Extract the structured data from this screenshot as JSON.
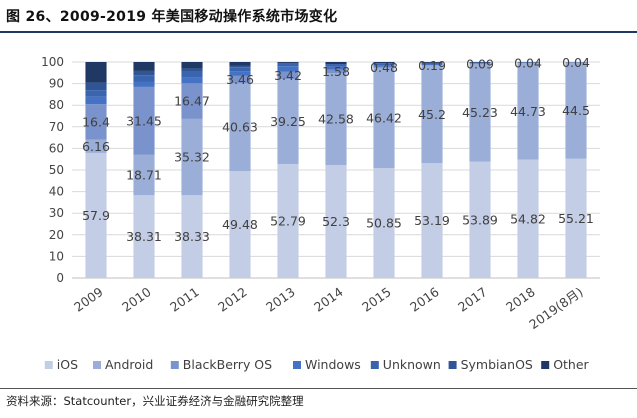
{
  "title": "图 26、2009-2019 年美国移动操作系统市场变化",
  "source": "资料来源：Statcounter，兴业证券经济与金融研究院整理",
  "chart_data": {
    "type": "bar",
    "stacked": true,
    "title": "",
    "xlabel": "",
    "ylabel": "",
    "ylim": [
      0,
      100
    ],
    "yticks": [
      "0",
      "10",
      "20",
      "30",
      "40",
      "50",
      "60",
      "70",
      "80",
      "90",
      "100"
    ],
    "grid": true,
    "legend_position": "bottom",
    "categories": [
      "2009",
      "2010",
      "2011",
      "2012",
      "2013",
      "2014",
      "2015",
      "2016",
      "2017",
      "2018",
      "2019(8月)"
    ],
    "series": [
      {
        "name": "iOS",
        "color": "#c3cde6",
        "values": [
          57.9,
          38.31,
          38.33,
          49.48,
          52.79,
          52.3,
          50.85,
          53.19,
          53.89,
          54.82,
          55.21
        ],
        "labels": [
          "57.9",
          "38.31",
          "38.33",
          "49.48",
          "52.79",
          "52.3",
          "50.85",
          "53.19",
          "53.89",
          "54.82",
          "55.21"
        ]
      },
      {
        "name": "Android",
        "color": "#9aaed8",
        "values": [
          6.16,
          18.71,
          35.32,
          40.63,
          39.25,
          42.58,
          46.42,
          45.2,
          45.23,
          44.73,
          44.5
        ],
        "labels": [
          "6.16",
          "18.71",
          "35.32",
          "40.63",
          "39.25",
          "42.58",
          "46.42",
          "45.2",
          "45.23",
          "44.73",
          "44.5"
        ]
      },
      {
        "name": "BlackBerry OS",
        "color": "#7b93cc",
        "values": [
          16.4,
          31.45,
          16.47,
          3.46,
          3.42,
          1.58,
          0.48,
          0.19,
          0.09,
          0.04,
          0.04
        ],
        "labels": [
          "16.4",
          "31.45",
          "16.47",
          "3.46",
          "3.42",
          "1.58",
          "0.48",
          "0.19",
          "0.09",
          "0.04",
          "0.04"
        ]
      },
      {
        "name": "Windows",
        "color": "#4472c4",
        "values": [
          3.5,
          2.5,
          2.9,
          2.2,
          2.6,
          1.5,
          0.8,
          0.5,
          0.3,
          0.2,
          0.1
        ]
      },
      {
        "name": "Unknown",
        "color": "#3a64ae",
        "values": [
          3.0,
          2.9,
          2.4,
          1.8,
          1.2,
          0.9,
          0.8,
          0.5,
          0.3,
          0.1,
          0.1
        ]
      },
      {
        "name": "SymbianOS",
        "color": "#2f5597",
        "values": [
          3.5,
          2.0,
          1.6,
          0.8,
          0.3,
          0.2,
          0.1,
          0.0,
          0.0,
          0.0,
          0.0
        ]
      },
      {
        "name": "Other",
        "color": "#203864",
        "values": [
          9.54,
          4.13,
          2.98,
          1.63,
          0.44,
          0.94,
          0.55,
          0.42,
          0.19,
          0.11,
          0.05
        ]
      }
    ]
  }
}
